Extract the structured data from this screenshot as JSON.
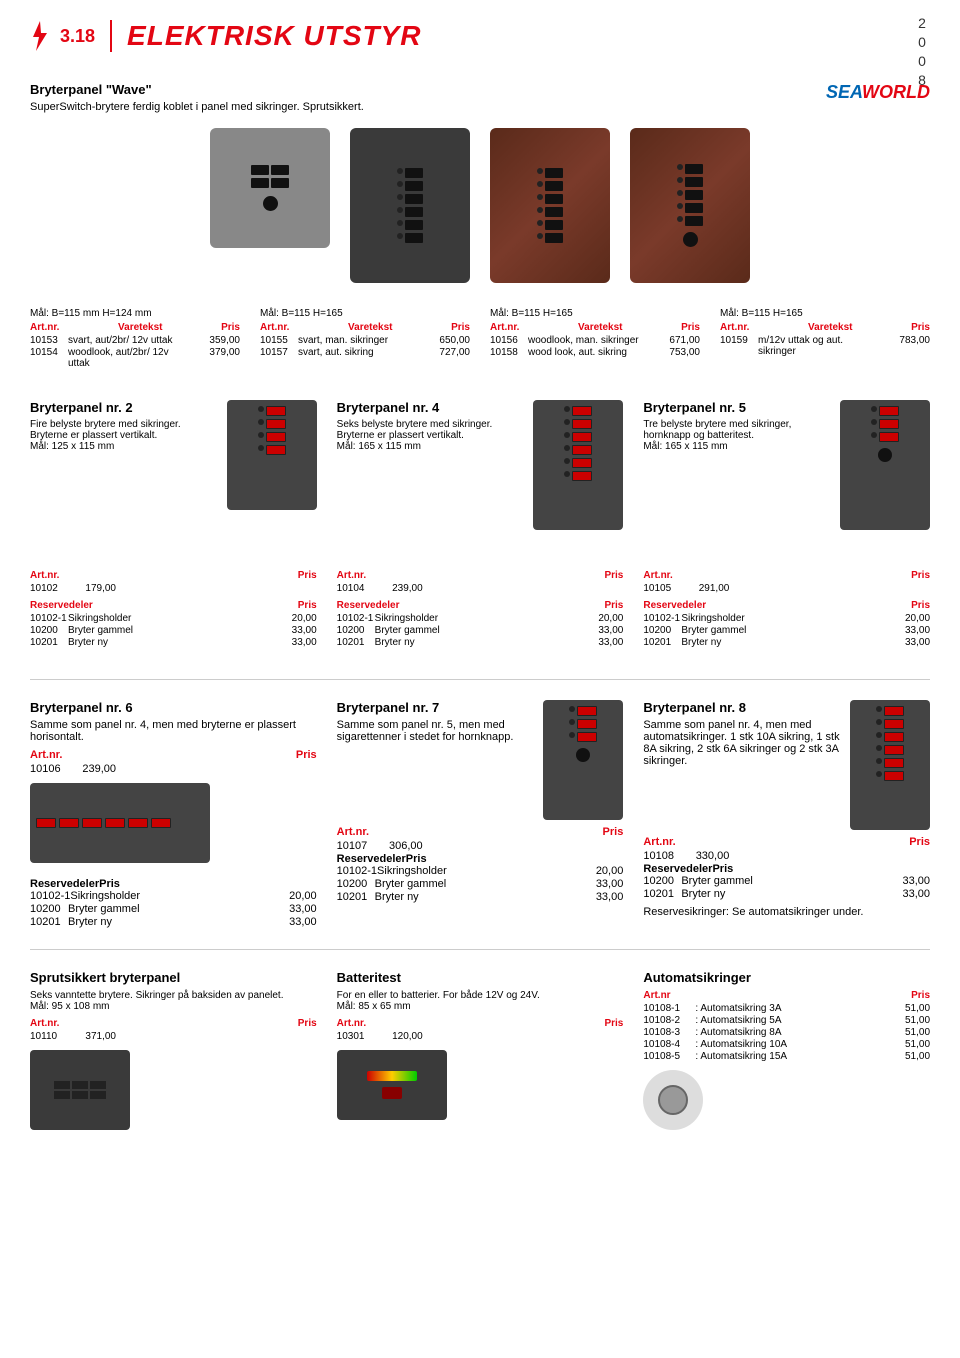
{
  "header": {
    "section_num": "3.18",
    "title": "ELEKTRISK UTSTYR",
    "year": "2008"
  },
  "brand": {
    "sea": "SEA",
    "world": "WORLD"
  },
  "intro": {
    "title": "Bryterpanel \"Wave\"",
    "text": "SuperSwitch-brytere ferdig koblet i panel med sikringer. Sprutsikkert."
  },
  "labels": {
    "artnr": "Art.nr.",
    "varetekst": "Varetekst",
    "pris": "Pris",
    "reservedeler": "Reservedeler"
  },
  "wave": {
    "col1": {
      "measure": "Mål: B=115 mm H=124 mm",
      "rows": [
        {
          "art": "10153",
          "desc": "svart, aut/2br/ 12v uttak",
          "pris": "359,00"
        },
        {
          "art": "10154",
          "desc": "woodlook, aut/2br/ 12v uttak",
          "pris": "379,00"
        }
      ]
    },
    "col2": {
      "measure": "Mål: B=115 H=165",
      "rows": [
        {
          "art": "10155",
          "desc": "svart, man. sikringer",
          "pris": "650,00"
        },
        {
          "art": "10157",
          "desc": "svart, aut. sikring",
          "pris": "727,00"
        }
      ]
    },
    "col3": {
      "measure": "Mål: B=115 H=165",
      "rows": [
        {
          "art": "10156",
          "desc": "woodlook, man. sikringer",
          "pris": "671,00"
        },
        {
          "art": "10158",
          "desc": "wood look, aut. sikring",
          "pris": "753,00"
        }
      ]
    },
    "col4": {
      "measure": "Mål: B=115 H=165",
      "rows": [
        {
          "art": "10159",
          "desc": "m/12v uttak og aut. sikringer",
          "pris": "783,00"
        }
      ]
    }
  },
  "p2": {
    "title": "Bryterpanel nr. 2",
    "desc": "Fire belyste brytere med sikringer. Bryterne er plassert vertikalt.",
    "measure": "Mål: 125 x 115 mm",
    "main": {
      "art": "10102",
      "pris": "179,00"
    },
    "parts": [
      {
        "art": "10102-1",
        "desc": "Sikringsholder",
        "pris": "20,00"
      },
      {
        "art": "10200",
        "desc": "Bryter gammel",
        "pris": "33,00"
      },
      {
        "art": "10201",
        "desc": "Bryter ny",
        "pris": "33,00"
      }
    ]
  },
  "p4": {
    "title": "Bryterpanel nr. 4",
    "desc": "Seks belyste brytere med sikringer. Bryterne er plassert vertikalt.",
    "measure": "Mål: 165 x 115 mm",
    "main": {
      "art": "10104",
      "pris": "239,00"
    },
    "parts": [
      {
        "art": "10102-1",
        "desc": "Sikringsholder",
        "pris": "20,00"
      },
      {
        "art": "10200",
        "desc": "Bryter gammel",
        "pris": "33,00"
      },
      {
        "art": "10201",
        "desc": "Bryter ny",
        "pris": "33,00"
      }
    ]
  },
  "p5": {
    "title": "Bryterpanel nr. 5",
    "desc": "Tre belyste brytere med sikringer, hornknapp og batteritest.",
    "measure": "Mål: 165 x 115 mm",
    "main": {
      "art": "10105",
      "pris": "291,00"
    },
    "parts": [
      {
        "art": "10102-1",
        "desc": "Sikringsholder",
        "pris": "20,00"
      },
      {
        "art": "10200",
        "desc": "Bryter gammel",
        "pris": "33,00"
      },
      {
        "art": "10201",
        "desc": "Bryter ny",
        "pris": "33,00"
      }
    ]
  },
  "p6": {
    "title": "Bryterpanel nr. 6",
    "desc": "Samme som panel nr. 4, men med bryterne er plassert horisontalt.",
    "main": {
      "art": "10106",
      "pris": "239,00"
    },
    "parts": [
      {
        "art": "10102-1",
        "desc": "Sikringsholder",
        "pris": "20,00"
      },
      {
        "art": "10200",
        "desc": "Bryter gammel",
        "pris": "33,00"
      },
      {
        "art": "10201",
        "desc": "Bryter ny",
        "pris": "33,00"
      }
    ]
  },
  "p7": {
    "title": "Bryterpanel nr. 7",
    "desc": "Samme som panel nr. 5, men med sigarettenner i stedet for hornknapp.",
    "main": {
      "art": "10107",
      "pris": "306,00"
    },
    "parts": [
      {
        "art": "10102-1",
        "desc": "Sikringsholder",
        "pris": "20,00"
      },
      {
        "art": "10200",
        "desc": "Bryter gammel",
        "pris": "33,00"
      },
      {
        "art": "10201",
        "desc": "Bryter ny",
        "pris": "33,00"
      }
    ]
  },
  "p8": {
    "title": "Bryterpanel nr. 8",
    "desc": "Samme som panel nr. 4, men med automatsikringer. 1 stk 10A sikring, 1 stk 8A sikring, 2 stk 6A sikringer og 2 stk 3A sikringer.",
    "main": {
      "art": "10108",
      "pris": "330,00"
    },
    "parts": [
      {
        "art": "10200",
        "desc": "Bryter gammel",
        "pris": "33,00"
      },
      {
        "art": "10201",
        "desc": "Bryter ny",
        "pris": "33,00"
      }
    ],
    "note": "Reservesikringer: Se automatsikringer under."
  },
  "splash": {
    "title": "Sprutsikkert bryterpanel",
    "desc": "Seks vanntette brytere. Sikringer på baksiden av panelet.",
    "measure": "Mål: 95 x 108 mm",
    "main": {
      "art": "10110",
      "pris": "371,00"
    }
  },
  "batt": {
    "title": "Batteritest",
    "desc": "For en eller to batterier. For både 12V og 24V.",
    "measure": "Mål: 85 x 65 mm",
    "main": {
      "art": "10301",
      "pris": "120,00"
    }
  },
  "auto": {
    "title": "Automatsikringer",
    "artnr_label": "Art.nr",
    "pris_label": "Pris",
    "rows": [
      {
        "art": "10108-1",
        "desc": "Automatsikring 3A",
        "pris": "51,00"
      },
      {
        "art": "10108-2",
        "desc": "Automatsikring 5A",
        "pris": "51,00"
      },
      {
        "art": "10108-3",
        "desc": "Automatsikring 8A",
        "pris": "51,00"
      },
      {
        "art": "10108-4",
        "desc": "Automatsikring 10A",
        "pris": "51,00"
      },
      {
        "art": "10108-5",
        "desc": "Automatsikring 15A",
        "pris": "51,00"
      }
    ]
  }
}
